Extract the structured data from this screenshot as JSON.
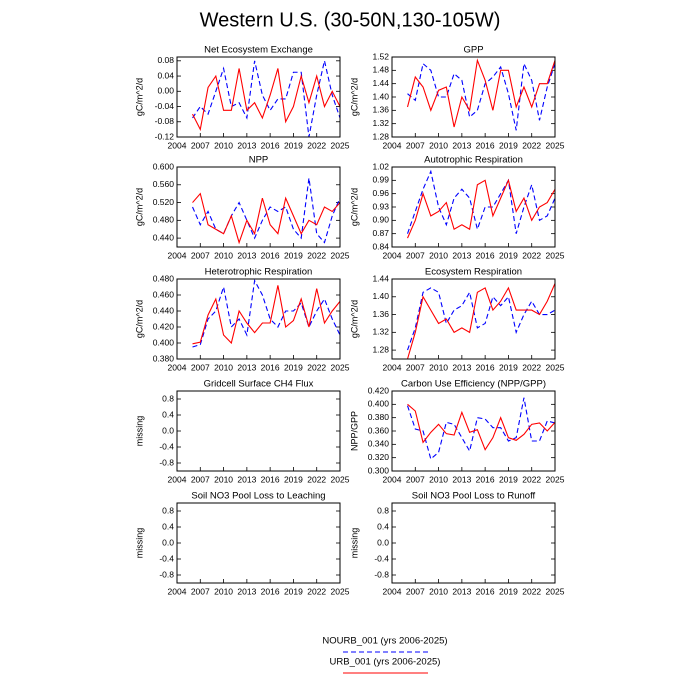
{
  "title": "Western U.S. (30-50N,130-105W)",
  "legend": [
    {
      "name": "NOURB_001 (yrs 2006-2025)",
      "color": "#0000ff",
      "dashed": true
    },
    {
      "name": "URB_001 (yrs 2006-2025)",
      "color": "#ff0000",
      "dashed": false
    }
  ],
  "chart_data": [
    {
      "type": "line",
      "title": "Net Ecosystem Exchange",
      "ylabel": "gC/m^2/d",
      "x": [
        2006,
        2007,
        2008,
        2009,
        2010,
        2011,
        2012,
        2013,
        2014,
        2015,
        2016,
        2017,
        2018,
        2019,
        2020,
        2021,
        2022,
        2023,
        2024,
        2025
      ],
      "xlim": [
        2004,
        2025
      ],
      "xticks": [
        2004,
        2007,
        2010,
        2013,
        2016,
        2019,
        2022,
        2025
      ],
      "ylim": [
        -0.12,
        0.09
      ],
      "yticks": [
        {
          "value": 0.08,
          "label": "0.08"
        },
        {
          "value": 0.04,
          "label": "0.04"
        },
        {
          "value": 0,
          "label": "0.00"
        },
        {
          "value": -0.04,
          "label": "-0.04"
        },
        {
          "value": -0.08,
          "label": "-0.08"
        },
        {
          "value": -0.12,
          "label": "-0.12"
        }
      ],
      "series": [
        {
          "color": "#0000ff",
          "dashed": true,
          "values": [
            -0.07,
            -0.04,
            -0.06,
            0.0,
            0.06,
            -0.04,
            -0.03,
            -0.07,
            0.08,
            -0.01,
            -0.05,
            -0.02,
            -0.02,
            0.05,
            0.05,
            -0.12,
            -0.01,
            0.08,
            -0.01,
            -0.07
          ]
        },
        {
          "color": "#ff0000",
          "dashed": false,
          "values": [
            -0.06,
            -0.1,
            0.01,
            0.04,
            -0.05,
            -0.05,
            0.06,
            -0.05,
            -0.03,
            -0.07,
            -0.01,
            0.06,
            -0.08,
            -0.04,
            0.04,
            -0.03,
            0.04,
            -0.04,
            0.0,
            -0.04
          ]
        }
      ]
    },
    {
      "type": "line",
      "title": "GPP",
      "ylabel": "gC/m^2/d",
      "x": [
        2006,
        2007,
        2008,
        2009,
        2010,
        2011,
        2012,
        2013,
        2014,
        2015,
        2016,
        2017,
        2018,
        2019,
        2020,
        2021,
        2022,
        2023,
        2024,
        2025
      ],
      "xlim": [
        2004,
        2025
      ],
      "xticks": [
        2004,
        2007,
        2010,
        2013,
        2016,
        2019,
        2022,
        2025
      ],
      "ylim": [
        1.28,
        1.52
      ],
      "yticks": [
        1.52,
        1.48,
        1.44,
        {
          "value": 1.4,
          "label": "1.40"
        },
        1.36,
        1.32,
        1.28
      ],
      "series": [
        {
          "color": "#0000ff",
          "dashed": true,
          "values": [
            1.41,
            1.39,
            1.5,
            1.48,
            1.4,
            1.4,
            1.47,
            1.45,
            1.34,
            1.36,
            1.44,
            1.46,
            1.49,
            1.41,
            1.3,
            1.5,
            1.45,
            1.33,
            1.43,
            1.5
          ]
        },
        {
          "color": "#ff0000",
          "dashed": false,
          "values": [
            1.37,
            1.46,
            1.43,
            1.36,
            1.42,
            1.43,
            1.31,
            1.4,
            1.36,
            1.51,
            1.45,
            1.36,
            1.48,
            1.48,
            1.37,
            1.43,
            1.37,
            1.44,
            1.44,
            1.51
          ]
        }
      ]
    },
    {
      "type": "line",
      "title": "NPP",
      "ylabel": "gC/m^2/d",
      "x": [
        2006,
        2007,
        2008,
        2009,
        2010,
        2011,
        2012,
        2013,
        2014,
        2015,
        2016,
        2017,
        2018,
        2019,
        2020,
        2021,
        2022,
        2023,
        2024,
        2025
      ],
      "xlim": [
        2004,
        2025
      ],
      "xticks": [
        2004,
        2007,
        2010,
        2013,
        2016,
        2019,
        2022,
        2025
      ],
      "ylim": [
        0.42,
        0.6
      ],
      "yticks": [
        {
          "value": 0.6,
          "label": "0.600"
        },
        {
          "value": 0.56,
          "label": "0.560"
        },
        {
          "value": 0.52,
          "label": "0.520"
        },
        {
          "value": 0.48,
          "label": "0.480"
        },
        {
          "value": 0.44,
          "label": "0.440"
        }
      ],
      "series": [
        {
          "color": "#0000ff",
          "dashed": true,
          "values": [
            0.51,
            0.47,
            0.5,
            0.46,
            0.45,
            0.49,
            0.52,
            0.48,
            0.44,
            0.48,
            0.51,
            0.5,
            0.51,
            0.46,
            0.44,
            0.575,
            0.45,
            0.43,
            0.49,
            0.53
          ]
        },
        {
          "color": "#ff0000",
          "dashed": false,
          "values": [
            0.52,
            0.54,
            0.47,
            0.46,
            0.45,
            0.49,
            0.43,
            0.48,
            0.45,
            0.53,
            0.47,
            0.45,
            0.53,
            0.49,
            0.45,
            0.48,
            0.47,
            0.51,
            0.5,
            0.52
          ]
        }
      ]
    },
    {
      "type": "line",
      "title": "Autotrophic Respiration",
      "ylabel": "gC/m^2/d",
      "x": [
        2006,
        2007,
        2008,
        2009,
        2010,
        2011,
        2012,
        2013,
        2014,
        2015,
        2016,
        2017,
        2018,
        2019,
        2020,
        2021,
        2022,
        2023,
        2024,
        2025
      ],
      "xlim": [
        2004,
        2025
      ],
      "xticks": [
        2004,
        2007,
        2010,
        2013,
        2016,
        2019,
        2022,
        2025
      ],
      "ylim": [
        0.84,
        1.02
      ],
      "yticks": [
        1.02,
        0.99,
        0.96,
        0.93,
        {
          "value": 0.9,
          "label": "0.90"
        },
        0.87,
        0.84
      ],
      "series": [
        {
          "color": "#0000ff",
          "dashed": true,
          "values": [
            0.87,
            0.92,
            0.97,
            1.01,
            0.93,
            0.89,
            0.95,
            0.97,
            0.95,
            0.88,
            0.93,
            0.93,
            0.96,
            0.99,
            0.87,
            0.93,
            0.98,
            0.9,
            0.91,
            0.95
          ]
        },
        {
          "color": "#ff0000",
          "dashed": false,
          "values": [
            0.86,
            0.9,
            0.96,
            0.91,
            0.92,
            0.94,
            0.88,
            0.89,
            0.88,
            0.98,
            0.99,
            0.91,
            0.95,
            0.99,
            0.92,
            0.95,
            0.9,
            0.93,
            0.94,
            0.97
          ]
        }
      ]
    },
    {
      "type": "line",
      "title": "Heterotrophic Respiration",
      "ylabel": "gC/m^2/d",
      "x": [
        2006,
        2007,
        2008,
        2009,
        2010,
        2011,
        2012,
        2013,
        2014,
        2015,
        2016,
        2017,
        2018,
        2019,
        2020,
        2021,
        2022,
        2023,
        2024,
        2025
      ],
      "xlim": [
        2004,
        2025
      ],
      "xticks": [
        2004,
        2007,
        2010,
        2013,
        2016,
        2019,
        2022,
        2025
      ],
      "ylim": [
        0.38,
        0.48
      ],
      "yticks": [
        {
          "value": 0.48,
          "label": "0.480"
        },
        {
          "value": 0.46,
          "label": "0.460"
        },
        {
          "value": 0.44,
          "label": "0.440"
        },
        {
          "value": 0.42,
          "label": "0.420"
        },
        {
          "value": 0.4,
          "label": "0.400"
        },
        {
          "value": 0.38,
          "label": "0.380"
        }
      ],
      "series": [
        {
          "color": "#0000ff",
          "dashed": true,
          "values": [
            0.395,
            0.398,
            0.43,
            0.44,
            0.47,
            0.42,
            0.43,
            0.41,
            0.478,
            0.46,
            0.43,
            0.42,
            0.44,
            0.44,
            0.45,
            0.42,
            0.44,
            0.455,
            0.43,
            0.41
          ]
        },
        {
          "color": "#ff0000",
          "dashed": false,
          "values": [
            0.399,
            0.401,
            0.435,
            0.455,
            0.41,
            0.4,
            0.44,
            0.425,
            0.413,
            0.425,
            0.425,
            0.472,
            0.42,
            0.428,
            0.455,
            0.42,
            0.468,
            0.425,
            0.44,
            0.452
          ]
        }
      ]
    },
    {
      "type": "line",
      "title": "Ecosystem Respiration",
      "ylabel": "gC/m^2/d",
      "x": [
        2006,
        2007,
        2008,
        2009,
        2010,
        2011,
        2012,
        2013,
        2014,
        2015,
        2016,
        2017,
        2018,
        2019,
        2020,
        2021,
        2022,
        2023,
        2024,
        2025
      ],
      "xlim": [
        2004,
        2025
      ],
      "xticks": [
        2004,
        2007,
        2010,
        2013,
        2016,
        2019,
        2022,
        2025
      ],
      "ylim": [
        1.26,
        1.44
      ],
      "yticks": [
        1.44,
        {
          "value": 1.4,
          "label": "1.40"
        },
        1.36,
        1.32,
        1.28
      ],
      "series": [
        {
          "color": "#0000ff",
          "dashed": true,
          "values": [
            1.28,
            1.33,
            1.41,
            1.42,
            1.41,
            1.34,
            1.37,
            1.38,
            1.41,
            1.33,
            1.34,
            1.4,
            1.38,
            1.4,
            1.32,
            1.36,
            1.39,
            1.36,
            1.36,
            1.37
          ]
        },
        {
          "color": "#ff0000",
          "dashed": false,
          "values": [
            1.26,
            1.32,
            1.4,
            1.37,
            1.34,
            1.35,
            1.32,
            1.33,
            1.32,
            1.41,
            1.42,
            1.37,
            1.39,
            1.42,
            1.37,
            1.37,
            1.37,
            1.36,
            1.39,
            1.43
          ]
        }
      ]
    },
    {
      "type": "line",
      "title": "Gridcell Surface CH4 Flux",
      "ylabel": "missing",
      "xlim": [
        2004,
        2025
      ],
      "xticks": [
        2004,
        2007,
        2010,
        2013,
        2016,
        2019,
        2022,
        2025
      ],
      "ylim": [
        -1,
        1
      ],
      "yticks": [
        0.8,
        0.4,
        {
          "value": 0,
          "label": "0.0"
        },
        -0.4,
        -0.8
      ]
    },
    {
      "type": "line",
      "title": "Carbon Use Efficiency (NPP/GPP)",
      "ylabel": "NPP/GPP",
      "x": [
        2006,
        2007,
        2008,
        2009,
        2010,
        2011,
        2012,
        2013,
        2014,
        2015,
        2016,
        2017,
        2018,
        2019,
        2020,
        2021,
        2022,
        2023,
        2024,
        2025
      ],
      "xlim": [
        2004,
        2025
      ],
      "xticks": [
        2004,
        2007,
        2010,
        2013,
        2016,
        2019,
        2022,
        2025
      ],
      "ylim": [
        0.3,
        0.42
      ],
      "yticks": [
        {
          "value": 0.42,
          "label": "0.420"
        },
        {
          "value": 0.4,
          "label": "0.400"
        },
        {
          "value": 0.38,
          "label": "0.380"
        },
        {
          "value": 0.36,
          "label": "0.360"
        },
        {
          "value": 0.34,
          "label": "0.340"
        },
        {
          "value": 0.32,
          "label": "0.320"
        },
        {
          "value": 0.3,
          "label": "0.300"
        }
      ],
      "series": [
        {
          "color": "#0000ff",
          "dashed": true,
          "values": [
            0.398,
            0.363,
            0.36,
            0.318,
            0.328,
            0.373,
            0.37,
            0.35,
            0.33,
            0.38,
            0.378,
            0.365,
            0.365,
            0.345,
            0.35,
            0.41,
            0.345,
            0.345,
            0.375,
            0.372
          ]
        },
        {
          "color": "#ff0000",
          "dashed": false,
          "values": [
            0.4,
            0.39,
            0.343,
            0.358,
            0.37,
            0.356,
            0.354,
            0.388,
            0.358,
            0.362,
            0.332,
            0.35,
            0.38,
            0.35,
            0.346,
            0.355,
            0.37,
            0.372,
            0.36,
            0.373
          ]
        }
      ]
    },
    {
      "type": "line",
      "title": "Soil NO3 Pool Loss to Leaching",
      "ylabel": "missing",
      "xlim": [
        2004,
        2025
      ],
      "xticks": [
        2004,
        2007,
        2010,
        2013,
        2016,
        2019,
        2022,
        2025
      ],
      "ylim": [
        -1,
        1
      ],
      "yticks": [
        0.8,
        0.4,
        {
          "value": 0,
          "label": "0.0"
        },
        -0.4,
        -0.8
      ]
    },
    {
      "type": "line",
      "title": "Soil NO3 Pool Loss to Runoff",
      "ylabel": "missing",
      "xlim": [
        2004,
        2025
      ],
      "xticks": [
        2004,
        2007,
        2010,
        2013,
        2016,
        2019,
        2022,
        2025
      ],
      "ylim": [
        -1,
        1
      ],
      "yticks": [
        0.8,
        0.4,
        {
          "value": 0,
          "label": "0.0"
        },
        -0.4,
        -0.8
      ]
    }
  ]
}
